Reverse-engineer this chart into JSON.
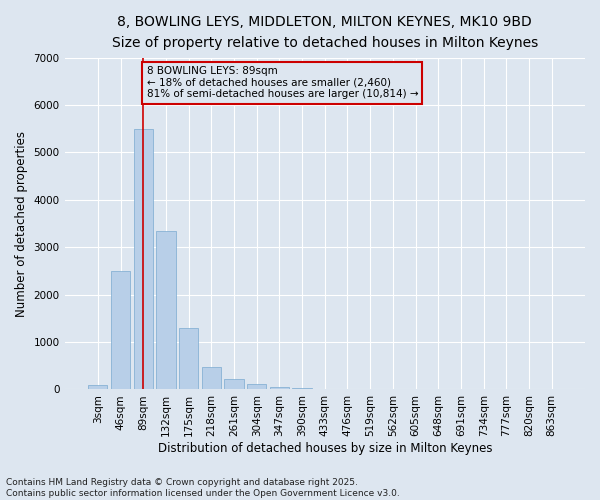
{
  "title_line1": "8, BOWLING LEYS, MIDDLETON, MILTON KEYNES, MK10 9BD",
  "title_line2": "Size of property relative to detached houses in Milton Keynes",
  "xlabel": "Distribution of detached houses by size in Milton Keynes",
  "ylabel": "Number of detached properties",
  "bar_color": "#b8cfe8",
  "bar_edge_color": "#7aaad0",
  "categories": [
    "3sqm",
    "46sqm",
    "89sqm",
    "132sqm",
    "175sqm",
    "218sqm",
    "261sqm",
    "304sqm",
    "347sqm",
    "390sqm",
    "433sqm",
    "476sqm",
    "519sqm",
    "562sqm",
    "605sqm",
    "648sqm",
    "691sqm",
    "734sqm",
    "777sqm",
    "820sqm",
    "863sqm"
  ],
  "values": [
    100,
    2500,
    5500,
    3350,
    1300,
    480,
    215,
    110,
    55,
    30,
    0,
    0,
    0,
    0,
    0,
    0,
    0,
    0,
    0,
    0,
    0
  ],
  "ylim": [
    0,
    7000
  ],
  "yticks": [
    0,
    1000,
    2000,
    3000,
    4000,
    5000,
    6000,
    7000
  ],
  "vline_x_idx": 2,
  "vline_color": "#cc0000",
  "annotation_text": "8 BOWLING LEYS: 89sqm\n← 18% of detached houses are smaller (2,460)\n81% of semi-detached houses are larger (10,814) →",
  "annotation_box_color": "#cc0000",
  "background_color": "#dde6f0",
  "grid_color": "#ffffff",
  "footnote": "Contains HM Land Registry data © Crown copyright and database right 2025.\nContains public sector information licensed under the Open Government Licence v3.0.",
  "title_fontsize": 10,
  "subtitle_fontsize": 9,
  "axis_label_fontsize": 8.5,
  "tick_fontsize": 7.5,
  "annotation_fontsize": 7.5,
  "footnote_fontsize": 6.5
}
